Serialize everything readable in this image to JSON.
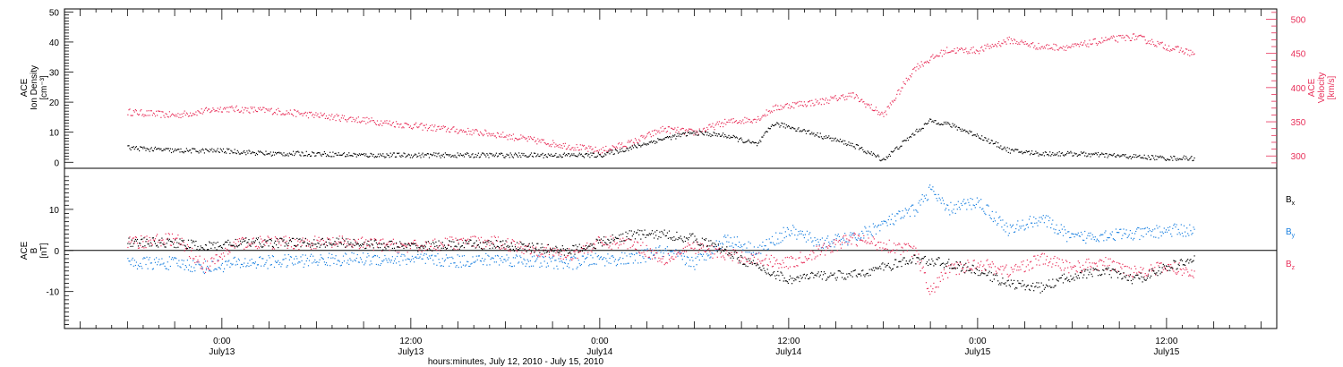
{
  "chart_data": [
    {
      "type": "scatter",
      "panel": "top",
      "ylabel_left": [
        "ACE",
        "Ion Density",
        "[cm⁻³]"
      ],
      "ylabel_right": [
        "ACE",
        "Velocity",
        "[km/s]"
      ],
      "ylim_left": [
        -2,
        51
      ],
      "yticks_left": [
        0,
        10,
        20,
        30,
        40,
        50
      ],
      "ylim_right": [
        282,
        515
      ],
      "yticks_right": [
        300,
        350,
        400,
        450,
        500
      ],
      "grid": false,
      "series": [
        {
          "axis": "left",
          "color": "#000000",
          "x": [
            -6,
            -3,
            0,
            3,
            6,
            9,
            12,
            15,
            17.5,
            22,
            24,
            26,
            28,
            30,
            32,
            34,
            35,
            36,
            38,
            40,
            42,
            44,
            45,
            46,
            48,
            50,
            52,
            54,
            56,
            58,
            60,
            61.8
          ],
          "y": [
            5,
            4,
            4,
            3,
            3,
            2.5,
            2.5,
            2.5,
            2.5,
            2.5,
            2.5,
            5,
            8,
            10,
            9,
            6,
            13,
            12,
            9,
            6,
            1,
            10,
            14,
            13,
            9,
            4,
            3,
            3,
            2.5,
            2,
            1.5,
            1.5
          ]
        },
        {
          "axis": "right",
          "color": "#e8305a",
          "x": [
            -6,
            -3,
            0,
            3,
            6,
            9,
            12,
            15,
            17.5,
            22,
            24,
            26,
            28,
            30,
            32,
            34,
            35,
            36,
            38,
            40,
            42,
            44,
            46,
            48,
            50,
            52,
            54,
            56,
            58,
            60,
            61.8
          ],
          "y": [
            365,
            360,
            370,
            367,
            360,
            353,
            345,
            338,
            332,
            315,
            308,
            320,
            340,
            335,
            350,
            355,
            370,
            375,
            380,
            390,
            360,
            430,
            455,
            455,
            470,
            460,
            460,
            470,
            475,
            460,
            450
          ]
        }
      ]
    },
    {
      "type": "scatter",
      "panel": "bottom",
      "ylabel": [
        "ACE",
        "B",
        "[nT]"
      ],
      "ylim": [
        -19,
        20
      ],
      "yticks": [
        -10,
        0,
        10
      ],
      "zero_line": true,
      "legend_placement": "right",
      "grid": false,
      "series": [
        {
          "name": "Bx",
          "color": "#000000",
          "x": [
            -6,
            -3,
            -1,
            1,
            4,
            8,
            12,
            15,
            17.5,
            22,
            24,
            26,
            28,
            30,
            32,
            34,
            36,
            38,
            40,
            44,
            46,
            48,
            50,
            52,
            54,
            56,
            58,
            60,
            61.8
          ],
          "y": [
            2,
            2,
            1,
            2,
            2,
            2,
            1,
            1.5,
            1.5,
            0,
            2,
            4,
            4,
            3,
            0,
            -4,
            -7,
            -6,
            -6,
            -2,
            -3,
            -5,
            -8,
            -9,
            -6,
            -5,
            -7,
            -4,
            -2
          ]
        },
        {
          "name": "By",
          "color": "#1a80e0",
          "x": [
            -6,
            -3,
            -1,
            1,
            4,
            8,
            12,
            15,
            17.5,
            22,
            24,
            26,
            28,
            30,
            32,
            34,
            36,
            38,
            40,
            44,
            45,
            46,
            48,
            50,
            52,
            54,
            56,
            58,
            60,
            61.8
          ],
          "y": [
            -3,
            -3,
            -4,
            -3,
            -2.5,
            -2,
            -2,
            -2.5,
            -2,
            -3,
            -2,
            -2,
            0,
            -3,
            3,
            0,
            5,
            2,
            3,
            10,
            15,
            10,
            12,
            5,
            8,
            3,
            4,
            4,
            5,
            5
          ]
        },
        {
          "name": "Bz",
          "color": "#e8305a",
          "x": [
            -6,
            -3,
            -1,
            1,
            4,
            8,
            12,
            15,
            17.5,
            22,
            24,
            26,
            28,
            30,
            32,
            34,
            36,
            38,
            40,
            44,
            45,
            46,
            48,
            50,
            52,
            54,
            56,
            58,
            60,
            61.8
          ],
          "y": [
            2,
            3,
            -4,
            2,
            2,
            2,
            1,
            2,
            2,
            -1,
            2,
            2,
            -2,
            1,
            -1,
            -2,
            -3,
            0,
            3,
            0,
            -10,
            -5,
            -3,
            -5,
            -2,
            -4,
            -3,
            -5,
            -4,
            -5
          ]
        }
      ],
      "legend": [
        "Bx",
        "By",
        "Bz"
      ]
    }
  ],
  "x_axis": {
    "title": "hours:minutes, July 12, 2010 - July 15, 2010",
    "range_hours": [
      -10,
      67
    ],
    "ticks": [
      {
        "hour": 0,
        "line1": "0:00",
        "line2": "July13"
      },
      {
        "hour": 12,
        "line1": "12:00",
        "line2": "July13"
      },
      {
        "hour": 24,
        "line1": "0:00",
        "line2": "July14"
      },
      {
        "hour": 36,
        "line1": "12:00",
        "line2": "July14"
      },
      {
        "hour": 48,
        "line1": "0:00",
        "line2": "July15"
      },
      {
        "hour": 60,
        "line1": "12:00",
        "line2": "July15"
      }
    ]
  }
}
